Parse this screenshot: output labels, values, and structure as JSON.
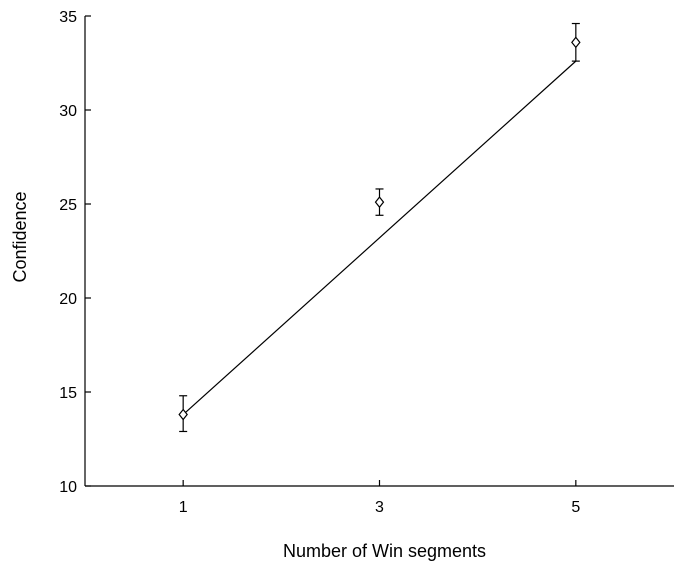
{
  "chart_data": {
    "type": "scatter",
    "title": "",
    "xlabel": "Number of Win segments",
    "ylabel": "Confidence",
    "xlim": [
      0,
      6
    ],
    "ylim": [
      10,
      35
    ],
    "x_ticks": [
      1,
      3,
      5
    ],
    "y_ticks": [
      10,
      15,
      20,
      25,
      30,
      35
    ],
    "grid": false,
    "marker": "diamond",
    "series": [
      {
        "x": [
          1,
          3,
          5
        ],
        "y": [
          13.8,
          25.1,
          33.6
        ],
        "error_low": [
          12.9,
          24.4,
          32.6
        ],
        "error_high": [
          14.8,
          25.8,
          34.6
        ]
      }
    ],
    "fit_line": {
      "x": [
        1,
        5
      ],
      "y": [
        13.8,
        32.6
      ]
    }
  }
}
